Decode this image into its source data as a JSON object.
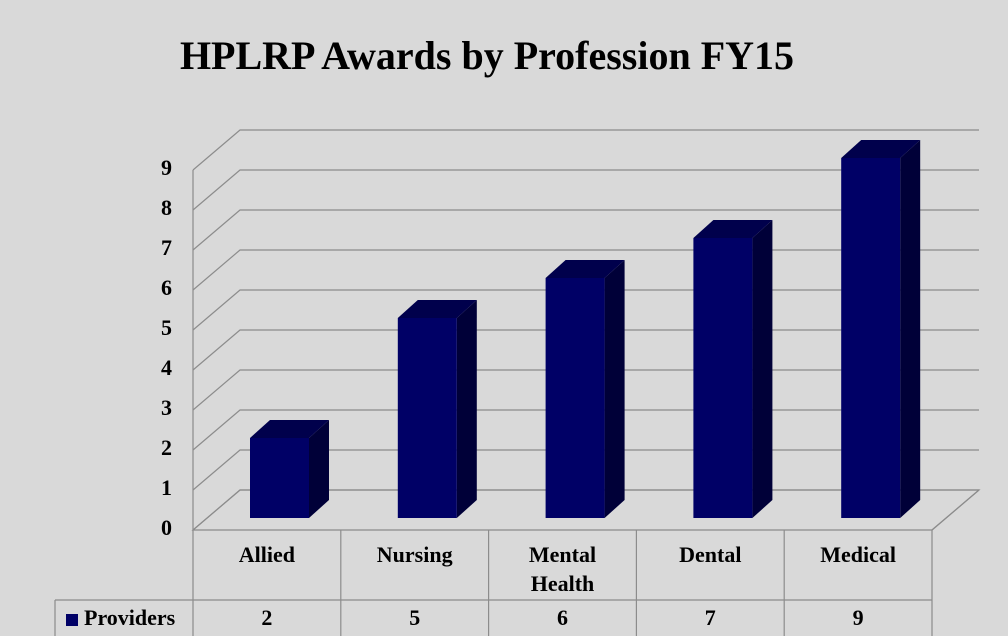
{
  "chart_data": {
    "type": "bar3d",
    "title": "HPLRP Awards by Profession FY15",
    "categories": [
      "Allied",
      "Nursing",
      "Mental Health",
      "Dental",
      "Medical"
    ],
    "series": [
      {
        "name": "Providers",
        "color": "#000066",
        "values": [
          2,
          5,
          6,
          7,
          9
        ]
      }
    ],
    "ylim": [
      0,
      9
    ],
    "yticks": [
      0,
      1,
      2,
      3,
      4,
      5,
      6,
      7,
      8,
      9
    ],
    "grid": true,
    "legend": "table"
  }
}
